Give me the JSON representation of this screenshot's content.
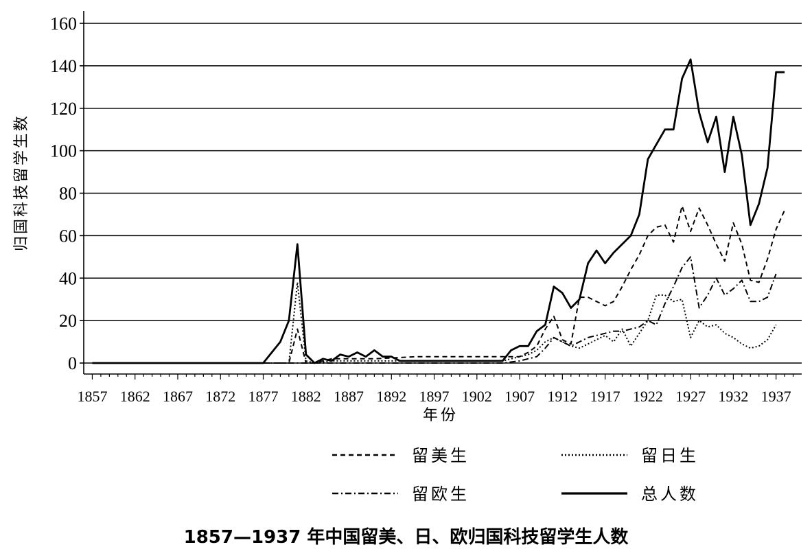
{
  "caption": "1857—1937 年中国留美、日、欧归国科技留学生人数",
  "chart_data": {
    "type": "line",
    "title": "1857—1937 年中国留美、日、欧归国科技留学生人数",
    "xlabel": "年份",
    "ylabel": "归国科技留学生数",
    "xlim": [
      1856,
      1940
    ],
    "ylim": [
      0,
      160
    ],
    "yticks": [
      0,
      20,
      40,
      60,
      80,
      100,
      120,
      140,
      160
    ],
    "xticks": [
      1857,
      1862,
      1867,
      1872,
      1877,
      1882,
      1887,
      1892,
      1897,
      1902,
      1907,
      1912,
      1917,
      1922,
      1927,
      1932,
      1937
    ],
    "grid": "horizontal",
    "legend_position": "bottom",
    "series": [
      {
        "name": "留美生",
        "style": "dashed",
        "x": [
          1857,
          1877,
          1879,
          1880,
          1881,
          1882,
          1883,
          1885,
          1890,
          1895,
          1900,
          1905,
          1907,
          1908,
          1909,
          1910,
          1911,
          1912,
          1913,
          1914,
          1915,
          1916,
          1917,
          1918,
          1919,
          1920,
          1921,
          1922,
          1923,
          1924,
          1925,
          1926,
          1927,
          1928,
          1929,
          1930,
          1931,
          1932,
          1933,
          1934,
          1935,
          1936,
          1937,
          1938
        ],
        "values": [
          0,
          0,
          0,
          0,
          16,
          0,
          0,
          2,
          2,
          3,
          3,
          3,
          3,
          5,
          8,
          16,
          22,
          11,
          9,
          31,
          31,
          29,
          27,
          29,
          36,
          44,
          51,
          60,
          64,
          65,
          57,
          74,
          62,
          73,
          65,
          56,
          48,
          66,
          56,
          39,
          38,
          49,
          63,
          72
        ]
      },
      {
        "name": "留日生",
        "style": "dotted",
        "x": [
          1857,
          1877,
          1879,
          1880,
          1881,
          1882,
          1883,
          1885,
          1890,
          1895,
          1900,
          1905,
          1907,
          1908,
          1909,
          1910,
          1911,
          1912,
          1913,
          1914,
          1915,
          1916,
          1917,
          1918,
          1919,
          1920,
          1921,
          1922,
          1923,
          1924,
          1925,
          1926,
          1927,
          1928,
          1929,
          1930,
          1931,
          1932,
          1933,
          1934,
          1935,
          1936,
          1937
        ],
        "values": [
          0,
          0,
          0,
          0,
          38,
          1,
          0,
          1,
          1,
          1,
          1,
          1,
          3,
          4,
          6,
          10,
          12,
          10,
          8,
          7,
          9,
          11,
          13,
          10,
          16,
          8,
          14,
          20,
          32,
          32,
          29,
          30,
          12,
          20,
          17,
          18,
          14,
          12,
          9,
          7,
          8,
          11,
          18
        ]
      },
      {
        "name": "留欧生",
        "style": "dashdot",
        "x": [
          1857,
          1880,
          1885,
          1890,
          1895,
          1900,
          1905,
          1907,
          1909,
          1910,
          1911,
          1912,
          1913,
          1914,
          1915,
          1916,
          1917,
          1918,
          1919,
          1920,
          1921,
          1922,
          1923,
          1924,
          1925,
          1926,
          1927,
          1928,
          1929,
          1930,
          1931,
          1932,
          1933,
          1934,
          1935,
          1936,
          1937
        ],
        "values": [
          0,
          0,
          0,
          0,
          0,
          0,
          0,
          1,
          3,
          7,
          12,
          10,
          8,
          10,
          12,
          13,
          14,
          15,
          15,
          16,
          17,
          20,
          18,
          28,
          36,
          45,
          50,
          26,
          32,
          40,
          32,
          35,
          39,
          29,
          29,
          31,
          42
        ]
      },
      {
        "name": "总人数",
        "style": "solid",
        "x": [
          1857,
          1877,
          1879,
          1880,
          1881,
          1882,
          1883,
          1884,
          1885,
          1886,
          1887,
          1888,
          1889,
          1890,
          1891,
          1892,
          1893,
          1894,
          1900,
          1905,
          1906,
          1907,
          1908,
          1909,
          1910,
          1911,
          1912,
          1913,
          1914,
          1915,
          1916,
          1917,
          1918,
          1919,
          1920,
          1921,
          1922,
          1923,
          1924,
          1925,
          1926,
          1927,
          1928,
          1929,
          1930,
          1931,
          1932,
          1933,
          1934,
          1935,
          1936,
          1937,
          1938
        ],
        "values": [
          0,
          0,
          10,
          20,
          56,
          4,
          0,
          2,
          1,
          4,
          3,
          5,
          3,
          6,
          3,
          3,
          1,
          1,
          1,
          1,
          6,
          8,
          8,
          15,
          18,
          36,
          33,
          26,
          30,
          47,
          53,
          47,
          52,
          56,
          60,
          70,
          96,
          103,
          110,
          110,
          134,
          143,
          118,
          104,
          116,
          90,
          116,
          98,
          65,
          75,
          92,
          137,
          137
        ]
      }
    ]
  },
  "legend": {
    "items": [
      {
        "label": "留美生",
        "style": "dashed"
      },
      {
        "label": "留日生",
        "style": "dotted"
      },
      {
        "label": "留欧生",
        "style": "dashdot"
      },
      {
        "label": "总人数",
        "style": "solid"
      }
    ]
  }
}
